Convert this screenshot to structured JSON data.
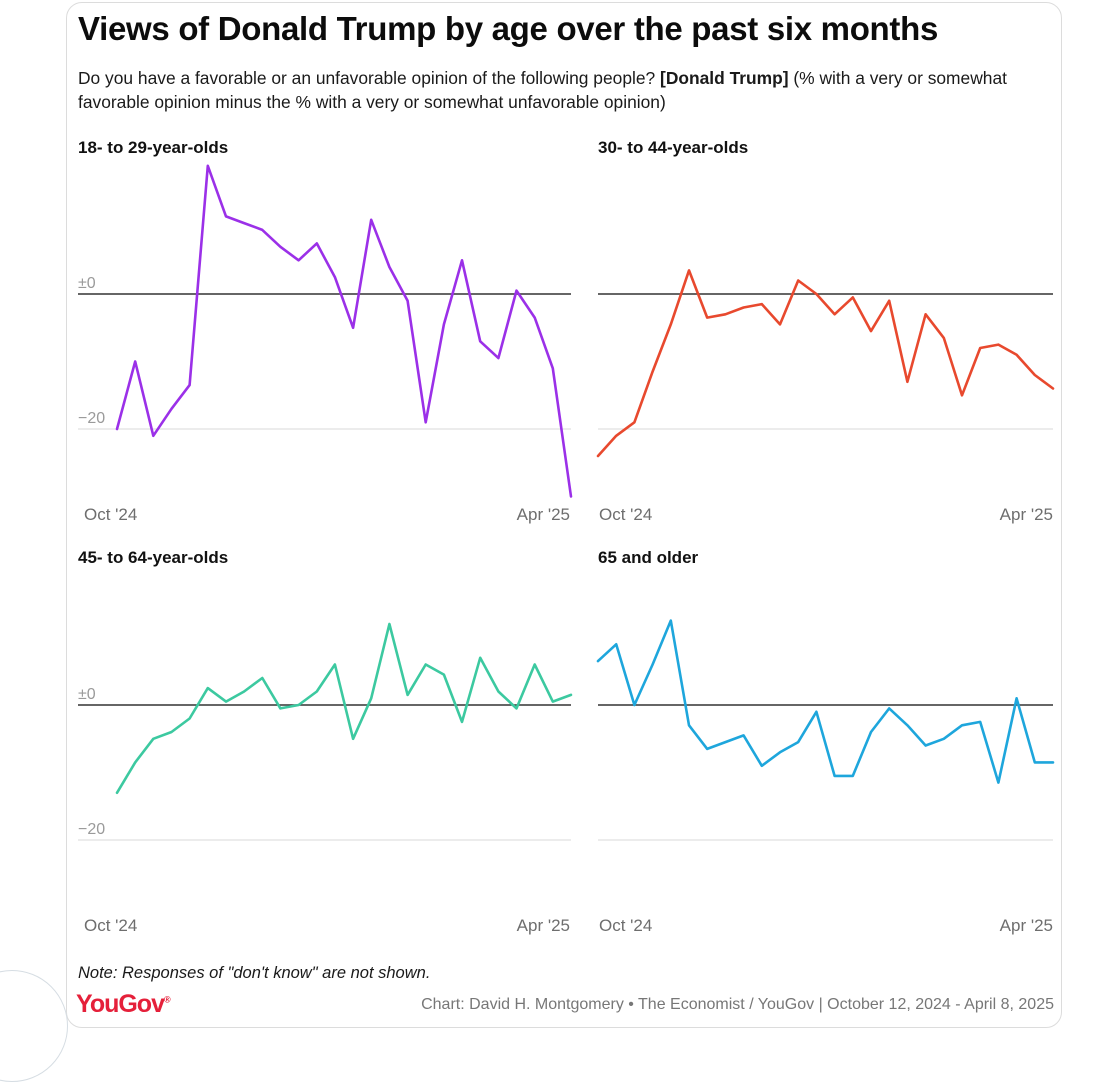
{
  "header": {
    "title": "Views of Donald Trump by age over the past six months",
    "subtitle_prefix": "Do you have a favorable or an unfavorable opinion of the following people? ",
    "subtitle_bold": "[Donald Trump]",
    "subtitle_suffix": " (% with a very or somewhat favorable opinion minus the % with a very or somewhat unfavorable opinion)"
  },
  "footer": {
    "note": "Note: Responses of \"don't know\" are not shown.",
    "logo": "YouGov",
    "source": "Chart: David H. Montgomery • The Economist / YouGov | October 12, 2024 - April 8, 2025"
  },
  "colors": {
    "purple": "#9b30e8",
    "red": "#e8492e",
    "green": "#3cc9a0",
    "blue": "#1ea6dc",
    "zero_line": "#333333",
    "grid": "#d9d9d9"
  },
  "chart_data": [
    {
      "type": "line",
      "title": "18- to 29-year-olds",
      "color": "#9b30e8",
      "x_start_label": "Oct '24",
      "x_end_label": "Apr '25",
      "y_ticks": [
        "±0",
        "−20"
      ],
      "ylim": [
        -30,
        20
      ],
      "values": [
        -20,
        -10,
        -21,
        -17,
        -13.5,
        19,
        11.5,
        10.5,
        9.5,
        7,
        5,
        7.5,
        2.5,
        -5,
        11,
        4,
        -1,
        -19,
        -4.5,
        5,
        -7,
        -9.5,
        0.5,
        -3.5,
        -11,
        -30
      ]
    },
    {
      "type": "line",
      "title": "30- to 44-year-olds",
      "color": "#e8492e",
      "x_start_label": "Oct '24",
      "x_end_label": "Apr '25",
      "y_ticks": [],
      "ylim": [
        -30,
        20
      ],
      "values": [
        -24,
        -21,
        -19,
        -11.5,
        -4.5,
        3.5,
        -3.5,
        -3,
        -2,
        -1.5,
        -4.5,
        2,
        0,
        -3,
        -0.5,
        -5.5,
        -1,
        -13,
        -3,
        -6.5,
        -15,
        -8,
        -7.5,
        -9,
        -12,
        -14
      ]
    },
    {
      "type": "line",
      "title": "45- to 64-year-olds",
      "color": "#3cc9a0",
      "x_start_label": "Oct '24",
      "x_end_label": "Apr '25",
      "y_ticks": [
        "±0",
        "−20"
      ],
      "ylim": [
        -30,
        20
      ],
      "values": [
        -13,
        -8.5,
        -5,
        -4,
        -2,
        2.5,
        0.5,
        2,
        4,
        -0.5,
        0,
        2,
        6,
        -5,
        1,
        12,
        1.5,
        6,
        4.5,
        -2.5,
        7,
        2,
        -0.5,
        6,
        0.5,
        1.5
      ]
    },
    {
      "type": "line",
      "title": "65 and older",
      "color": "#1ea6dc",
      "x_start_label": "Oct '24",
      "x_end_label": "Apr '25",
      "y_ticks": [],
      "ylim": [
        -30,
        20
      ],
      "values": [
        6.5,
        9,
        0,
        6,
        12.5,
        -3,
        -6.5,
        -5.5,
        -4.5,
        -9,
        -7,
        -5.5,
        -1,
        -10.5,
        -10.5,
        -4,
        -0.5,
        -3,
        -6,
        -5,
        -3,
        -2.5,
        -11.5,
        1,
        -8.5,
        -8.5
      ]
    }
  ]
}
